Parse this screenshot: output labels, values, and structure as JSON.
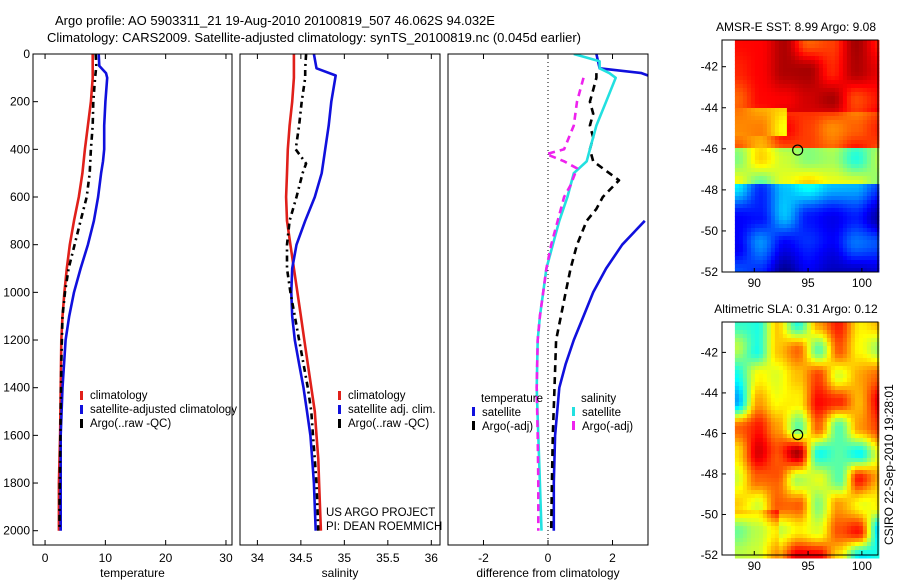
{
  "header": {
    "line1": "Argo profile: AO 5903311_21 19-Aug-2010 20100819_507 46.062S 94.032E",
    "line2": "Climatology: CARS2009. Satellite-adjusted climatology: synTS_20100819.nc (0.045d earlier)"
  },
  "credit": "CSIRO 22-Sep-2010 19:28:01",
  "project_note": [
    "US ARGO PROJECT",
    "PI: DEAN ROEMMICH"
  ],
  "colors": {
    "climatology": "#e0201a",
    "satellite": "#1010dd",
    "argo": "#000000",
    "sal_satellite": "#22e0e0",
    "sal_argo": "#ee22ee"
  },
  "chart_data": [
    {
      "id": "temperature",
      "type": "line",
      "xlabel": "temperature",
      "ylabel": "",
      "xlim": [
        -2,
        31
      ],
      "ylim": [
        2060,
        0
      ],
      "xticks": [
        0,
        10,
        20,
        30
      ],
      "yticks": [
        0,
        200,
        400,
        600,
        800,
        1000,
        1200,
        1400,
        1600,
        1800,
        2000
      ],
      "legend": [
        "climatology",
        "satellite-adjusted climatology",
        "Argo(..raw -QC)"
      ],
      "series": [
        {
          "name": "climatology",
          "color": "#e0201a",
          "dash": "",
          "points": [
            [
              7.9,
              0
            ],
            [
              7.9,
              50
            ],
            [
              7.9,
              100
            ],
            [
              7.6,
              200
            ],
            [
              7.1,
              300
            ],
            [
              6.6,
              400
            ],
            [
              6.2,
              500
            ],
            [
              5.6,
              600
            ],
            [
              4.8,
              700
            ],
            [
              4.1,
              800
            ],
            [
              3.6,
              900
            ],
            [
              3.2,
              1000
            ],
            [
              2.9,
              1100
            ],
            [
              2.7,
              1200
            ],
            [
              2.6,
              1400
            ],
            [
              2.5,
              1600
            ],
            [
              2.3,
              1800
            ],
            [
              2.3,
              2000
            ]
          ]
        },
        {
          "name": "satellite-adjusted climatology",
          "color": "#1010dd",
          "dash": "",
          "points": [
            [
              8.9,
              0
            ],
            [
              9.0,
              50
            ],
            [
              10.1,
              80
            ],
            [
              10.3,
              100
            ],
            [
              10.0,
              200
            ],
            [
              9.8,
              300
            ],
            [
              9.8,
              400
            ],
            [
              9.6,
              450
            ],
            [
              9.3,
              500
            ],
            [
              8.8,
              600
            ],
            [
              8.1,
              700
            ],
            [
              7.1,
              800
            ],
            [
              5.9,
              900
            ],
            [
              4.8,
              1000
            ],
            [
              4.0,
              1100
            ],
            [
              3.4,
              1200
            ],
            [
              2.9,
              1400
            ],
            [
              2.6,
              1600
            ],
            [
              2.6,
              1800
            ],
            [
              2.6,
              2000
            ]
          ]
        },
        {
          "name": "Argo(..raw -QC)",
          "color": "#000000",
          "dash": "6,4,2,4",
          "points": [
            [
              8.4,
              0
            ],
            [
              8.5,
              50
            ],
            [
              8.3,
              100
            ],
            [
              8.0,
              200
            ],
            [
              7.9,
              300
            ],
            [
              7.6,
              400
            ],
            [
              7.4,
              500
            ],
            [
              6.9,
              600
            ],
            [
              5.9,
              700
            ],
            [
              4.9,
              800
            ],
            [
              3.9,
              900
            ],
            [
              3.3,
              1000
            ],
            [
              2.9,
              1100
            ],
            [
              2.7,
              1300
            ],
            [
              2.6,
              1500
            ],
            [
              2.5,
              1700
            ],
            [
              2.4,
              1900
            ],
            [
              2.4,
              2000
            ]
          ]
        }
      ]
    },
    {
      "id": "salinity",
      "type": "line",
      "xlabel": "salinity",
      "ylabel": "",
      "xlim": [
        33.8,
        36.1
      ],
      "ylim": [
        2060,
        0
      ],
      "xticks": [
        34,
        34.5,
        35,
        35.5,
        36
      ],
      "yticks": [],
      "legend": [
        "climatology",
        "satellite adj. clim.",
        "Argo(..raw -QC)"
      ],
      "series": [
        {
          "name": "climatology",
          "color": "#e0201a",
          "dash": "",
          "points": [
            [
              34.42,
              0
            ],
            [
              34.42,
              100
            ],
            [
              34.4,
              200
            ],
            [
              34.37,
              300
            ],
            [
              34.35,
              400
            ],
            [
              34.34,
              500
            ],
            [
              34.33,
              600
            ],
            [
              34.34,
              700
            ],
            [
              34.38,
              800
            ],
            [
              34.42,
              900
            ],
            [
              34.46,
              1000
            ],
            [
              34.5,
              1100
            ],
            [
              34.54,
              1200
            ],
            [
              34.58,
              1300
            ],
            [
              34.62,
              1400
            ],
            [
              34.66,
              1500
            ],
            [
              34.68,
              1600
            ],
            [
              34.7,
              1700
            ],
            [
              34.71,
              1800
            ],
            [
              34.72,
              1900
            ],
            [
              34.73,
              2000
            ]
          ]
        },
        {
          "name": "satellite adj. clim.",
          "color": "#1010dd",
          "dash": "",
          "points": [
            [
              34.65,
              0
            ],
            [
              34.68,
              60
            ],
            [
              34.9,
              90
            ],
            [
              34.85,
              200
            ],
            [
              34.82,
              300
            ],
            [
              34.78,
              400
            ],
            [
              34.74,
              500
            ],
            [
              34.66,
              600
            ],
            [
              34.55,
              700
            ],
            [
              34.45,
              800
            ],
            [
              34.4,
              900
            ],
            [
              34.39,
              1000
            ],
            [
              34.4,
              1100
            ],
            [
              34.43,
              1200
            ],
            [
              34.48,
              1300
            ],
            [
              34.53,
              1400
            ],
            [
              34.57,
              1500
            ],
            [
              34.61,
              1600
            ],
            [
              34.63,
              1700
            ],
            [
              34.65,
              1800
            ],
            [
              34.66,
              1900
            ],
            [
              34.67,
              2000
            ]
          ]
        },
        {
          "name": "Argo(..raw -QC)",
          "color": "#000000",
          "dash": "6,4,2,4",
          "points": [
            [
              34.56,
              0
            ],
            [
              34.55,
              60
            ],
            [
              34.55,
              100
            ],
            [
              34.51,
              200
            ],
            [
              34.48,
              300
            ],
            [
              34.44,
              400
            ],
            [
              34.56,
              460
            ],
            [
              34.52,
              500
            ],
            [
              34.45,
              600
            ],
            [
              34.37,
              700
            ],
            [
              34.34,
              800
            ],
            [
              34.34,
              900
            ],
            [
              34.38,
              1000
            ],
            [
              34.43,
              1100
            ],
            [
              34.48,
              1200
            ],
            [
              34.53,
              1300
            ],
            [
              34.58,
              1400
            ],
            [
              34.62,
              1500
            ],
            [
              34.64,
              1600
            ],
            [
              34.66,
              1700
            ],
            [
              34.68,
              1800
            ],
            [
              34.69,
              1900
            ],
            [
              34.7,
              2000
            ]
          ]
        }
      ]
    },
    {
      "id": "difference",
      "type": "line",
      "xlabel": "difference from climatology",
      "ylabel": "",
      "xlim": [
        -3.1,
        3.1
      ],
      "ylim": [
        2060,
        0
      ],
      "xticks": [
        -2,
        0,
        2
      ],
      "yticks": [],
      "legend_titles": [
        "temperature",
        "salinity"
      ],
      "legend": [
        "satellite",
        "Argo(-adj)",
        "satellite",
        "Argo(-adj)"
      ],
      "series": [
        {
          "name": "temperature satellite",
          "color": "#1010dd",
          "dash": "",
          "points": [
            [
              1.5,
              0
            ],
            [
              1.6,
              60
            ],
            [
              2.9,
              80
            ],
            [
              3.1,
              90
            ]
          ]
        },
        {
          "name": "temperature satellite (deep)",
          "color": "#1010dd",
          "dash": "",
          "points": [
            [
              3.0,
              700
            ],
            [
              2.3,
              800
            ],
            [
              1.8,
              900
            ],
            [
              1.4,
              1000
            ],
            [
              1.1,
              1100
            ],
            [
              0.8,
              1200
            ],
            [
              0.55,
              1300
            ],
            [
              0.35,
              1400
            ],
            [
              0.22,
              1600
            ],
            [
              0.18,
              1800
            ],
            [
              0.18,
              2000
            ]
          ]
        },
        {
          "name": "temperature Argo(-adj)",
          "color": "#000000",
          "dash": "7,5",
          "points": [
            [
              1.5,
              80
            ],
            [
              1.5,
              100
            ],
            [
              1.4,
              150
            ],
            [
              1.3,
              200
            ],
            [
              1.4,
              250
            ],
            [
              1.3,
              300
            ],
            [
              1.4,
              350
            ],
            [
              1.3,
              400
            ],
            [
              1.4,
              450
            ],
            [
              1.7,
              480
            ],
            [
              2.2,
              530
            ],
            [
              1.7,
              600
            ],
            [
              1.5,
              650
            ],
            [
              1.2,
              700
            ],
            [
              0.9,
              800
            ],
            [
              0.7,
              900
            ],
            [
              0.55,
              1000
            ],
            [
              0.4,
              1100
            ],
            [
              0.25,
              1200
            ],
            [
              0.2,
              1400
            ],
            [
              0.15,
              1600
            ],
            [
              0.12,
              1800
            ],
            [
              0.1,
              2000
            ]
          ]
        },
        {
          "name": "salinity satellite",
          "color": "#22e0e0",
          "dash": "",
          "points": [
            [
              0.8,
              0
            ],
            [
              1.6,
              30
            ],
            [
              1.6,
              60
            ],
            [
              1.9,
              80
            ],
            [
              2.1,
              100
            ],
            [
              1.8,
              200
            ],
            [
              1.5,
              300
            ],
            [
              1.3,
              400
            ],
            [
              1.2,
              450
            ],
            [
              0.8,
              500
            ],
            [
              0.6,
              600
            ],
            [
              0.35,
              700
            ],
            [
              0.15,
              800
            ],
            [
              -0.05,
              900
            ],
            [
              -0.15,
              1000
            ],
            [
              -0.25,
              1100
            ],
            [
              -0.32,
              1200
            ],
            [
              -0.35,
              1400
            ],
            [
              -0.3,
              1600
            ],
            [
              -0.25,
              1800
            ],
            [
              -0.2,
              2000
            ]
          ]
        },
        {
          "name": "salinity Argo(-adj)",
          "color": "#ee22ee",
          "dash": "7,5",
          "points": [
            [
              1.1,
              100
            ],
            [
              0.9,
              200
            ],
            [
              0.8,
              300
            ],
            [
              0.5,
              400
            ],
            [
              -0.05,
              420
            ],
            [
              0.5,
              450
            ],
            [
              0.9,
              480
            ],
            [
              0.7,
              550
            ],
            [
              0.5,
              600
            ],
            [
              0.3,
              700
            ],
            [
              0.1,
              800
            ],
            [
              -0.05,
              900
            ],
            [
              -0.15,
              1000
            ],
            [
              -0.25,
              1100
            ],
            [
              -0.32,
              1200
            ],
            [
              -0.35,
              1400
            ],
            [
              -0.32,
              1600
            ],
            [
              -0.3,
              1800
            ],
            [
              -0.3,
              2000
            ]
          ]
        }
      ]
    },
    {
      "id": "sst_map",
      "type": "heatmap",
      "title": "AMSR-E SST: 8.99 Argo: 9.08",
      "xlim": [
        87,
        101.5
      ],
      "ylim": [
        -52,
        -40.7
      ],
      "xticks": [
        90,
        95,
        100
      ],
      "yticks": [
        -42,
        -44,
        -46,
        -48,
        -50,
        -52
      ],
      "marker": [
        94.032,
        -46.062
      ]
    },
    {
      "id": "sla_map",
      "type": "heatmap",
      "title": "Altimetric SLA: 0.31 Argo: 0.12",
      "xlim": [
        87,
        101.5
      ],
      "ylim": [
        -52,
        -40.5
      ],
      "xticks": [
        90,
        95,
        100
      ],
      "yticks": [
        -42,
        -44,
        -46,
        -48,
        -50,
        -52
      ],
      "marker": [
        94.032,
        -46.062
      ]
    }
  ]
}
